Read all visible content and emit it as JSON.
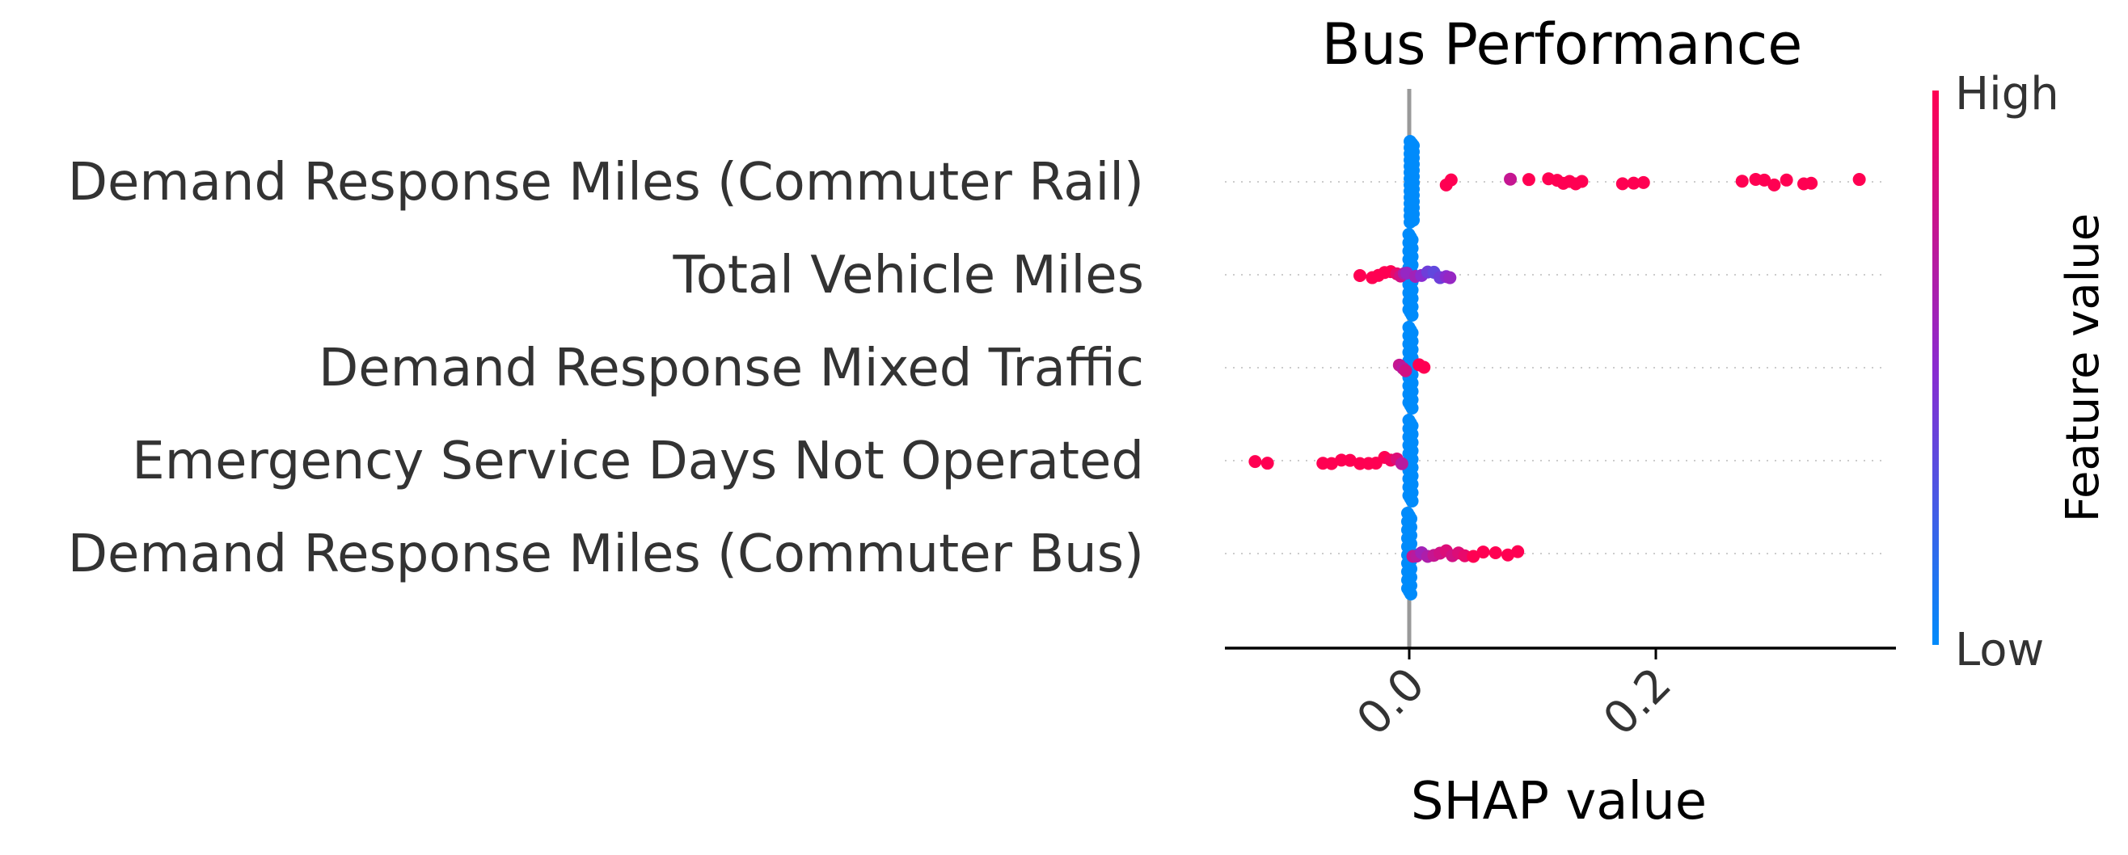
{
  "chart_data": {
    "type": "scatter",
    "subtype": "shap-beeswarm",
    "title": "Bus Performance",
    "xlabel": "SHAP value",
    "xlim": [
      -0.148,
      0.392
    ],
    "xticks": [
      0.0,
      0.2
    ],
    "xtick_labels": [
      "0.0",
      "0.2"
    ],
    "colorbar": {
      "label": "Feature value",
      "high_label": "High",
      "low_label": "Low",
      "high_color": "#ff0052",
      "mid_color": "#8a2bd0",
      "low_color": "#008bfb"
    },
    "grid": false,
    "zero_line": true,
    "features": [
      {
        "name": "Demand Response Miles (Commuter Rail)",
        "points": [
          {
            "x": 0.002,
            "n": 40,
            "v": 0.0
          },
          {
            "x": 0.03,
            "v": 1.0
          },
          {
            "x": 0.034,
            "v": 1.0
          },
          {
            "x": 0.082,
            "v": 0.75
          },
          {
            "x": 0.097,
            "v": 1.0
          },
          {
            "x": 0.113,
            "v": 1.0
          },
          {
            "x": 0.12,
            "v": 1.0
          },
          {
            "x": 0.125,
            "v": 1.0
          },
          {
            "x": 0.13,
            "v": 1.0
          },
          {
            "x": 0.135,
            "v": 1.0
          },
          {
            "x": 0.14,
            "v": 1.0
          },
          {
            "x": 0.173,
            "v": 1.0
          },
          {
            "x": 0.182,
            "v": 1.0
          },
          {
            "x": 0.19,
            "v": 1.0
          },
          {
            "x": 0.27,
            "v": 1.0
          },
          {
            "x": 0.281,
            "v": 1.0
          },
          {
            "x": 0.288,
            "v": 1.0
          },
          {
            "x": 0.296,
            "v": 1.0
          },
          {
            "x": 0.306,
            "v": 1.0
          },
          {
            "x": 0.32,
            "v": 1.0
          },
          {
            "x": 0.326,
            "v": 1.0
          },
          {
            "x": 0.365,
            "v": 1.0
          }
        ]
      },
      {
        "name": "Total Vehicle Miles",
        "points": [
          {
            "x": 0.001,
            "n": 30,
            "v": 0.0
          },
          {
            "x": -0.04,
            "v": 1.0
          },
          {
            "x": -0.03,
            "v": 1.0
          },
          {
            "x": -0.025,
            "v": 1.0
          },
          {
            "x": -0.02,
            "v": 1.0
          },
          {
            "x": -0.015,
            "v": 1.0
          },
          {
            "x": -0.01,
            "v": 0.9
          },
          {
            "x": -0.007,
            "v": 0.8
          },
          {
            "x": -0.004,
            "v": 0.65
          },
          {
            "x": -0.002,
            "v": 0.55
          },
          {
            "x": 0.005,
            "v": 0.6
          },
          {
            "x": 0.01,
            "v": 0.5
          },
          {
            "x": 0.015,
            "v": 0.4
          },
          {
            "x": 0.02,
            "v": 0.35
          },
          {
            "x": 0.025,
            "v": 0.4
          },
          {
            "x": 0.03,
            "v": 0.5
          },
          {
            "x": 0.033,
            "v": 0.55
          }
        ]
      },
      {
        "name": "Demand Response Mixed Traffic",
        "points": [
          {
            "x": 0.001,
            "n": 30,
            "v": 0.0
          },
          {
            "x": -0.008,
            "v": 0.75
          },
          {
            "x": -0.005,
            "v": 0.7
          },
          {
            "x": -0.003,
            "v": 0.8
          },
          {
            "x": 0.008,
            "v": 1.0
          },
          {
            "x": 0.012,
            "v": 1.0
          }
        ]
      },
      {
        "name": "Emergency Service Days Not Operated",
        "points": [
          {
            "x": 0.001,
            "n": 30,
            "v": 0.0
          },
          {
            "x": -0.125,
            "v": 1.0
          },
          {
            "x": -0.115,
            "v": 1.0
          },
          {
            "x": -0.07,
            "v": 1.0
          },
          {
            "x": -0.063,
            "v": 1.0
          },
          {
            "x": -0.055,
            "v": 1.0
          },
          {
            "x": -0.048,
            "v": 1.0
          },
          {
            "x": -0.04,
            "v": 1.0
          },
          {
            "x": -0.033,
            "v": 1.0
          },
          {
            "x": -0.027,
            "v": 1.0
          },
          {
            "x": -0.02,
            "v": 1.0
          },
          {
            "x": -0.015,
            "v": 0.95
          },
          {
            "x": -0.01,
            "v": 0.85
          },
          {
            "x": -0.006,
            "v": 0.7
          }
        ]
      },
      {
        "name": "Demand Response Miles (Commuter Bus)",
        "points": [
          {
            "x": 0.0,
            "n": 30,
            "v": 0.0
          },
          {
            "x": 0.003,
            "v": 0.75
          },
          {
            "x": 0.006,
            "v": 0.7
          },
          {
            "x": 0.01,
            "v": 0.6
          },
          {
            "x": 0.015,
            "v": 0.65
          },
          {
            "x": 0.02,
            "v": 0.75
          },
          {
            "x": 0.025,
            "v": 0.8
          },
          {
            "x": 0.03,
            "v": 0.85
          },
          {
            "x": 0.035,
            "v": 0.8
          },
          {
            "x": 0.04,
            "v": 0.85
          },
          {
            "x": 0.045,
            "v": 0.9
          },
          {
            "x": 0.052,
            "v": 1.0
          },
          {
            "x": 0.06,
            "v": 1.0
          },
          {
            "x": 0.07,
            "v": 1.0
          },
          {
            "x": 0.08,
            "v": 1.0
          },
          {
            "x": 0.088,
            "v": 1.0
          }
        ]
      }
    ]
  }
}
